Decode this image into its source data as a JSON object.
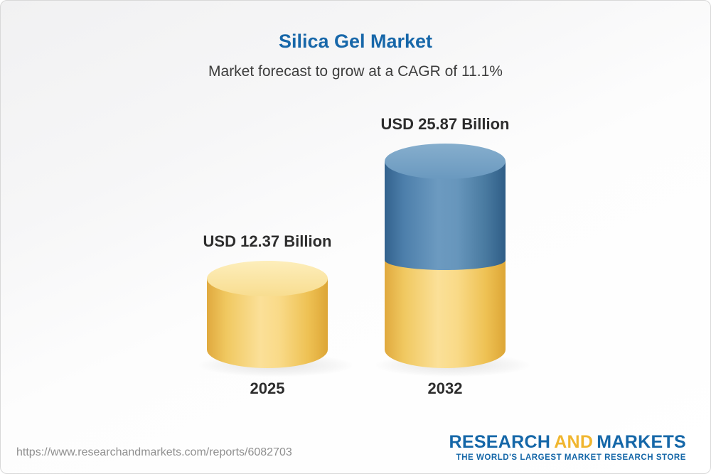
{
  "header": {
    "title": "Silica Gel Market",
    "subtitle": "Market forecast to grow at a CAGR of 11.1%"
  },
  "chart_data": {
    "type": "bar",
    "bar_style": "3d-cylinder",
    "title": "Silica Gel Market",
    "subtitle": "Market forecast to grow at a CAGR of 11.1%",
    "cagr_percent": 11.1,
    "unit": "USD Billion",
    "categories": [
      "2025",
      "2032"
    ],
    "values": [
      12.37,
      25.87
    ],
    "value_labels": [
      "USD 12.37 Billion",
      "USD 25.87 Billion"
    ],
    "legend": "none",
    "grid": false,
    "colors": {
      "bar_2025": "#F5CF6F",
      "bar_2032_base_segment": "#F5CF6F",
      "bar_2032_growth_segment": "#4E7FA8",
      "title_text": "#1767A9",
      "label_text": "#2D2D2D"
    }
  },
  "footer": {
    "url": "https://www.researchandmarkets.com/reports/6082703",
    "logo": {
      "research": "RESEARCH",
      "and": "AND",
      "markets": "MARKETS",
      "tagline": "THE WORLD'S LARGEST MARKET RESEARCH STORE",
      "brand_blue": "#1567A8",
      "brand_gold": "#F0B62F"
    }
  }
}
